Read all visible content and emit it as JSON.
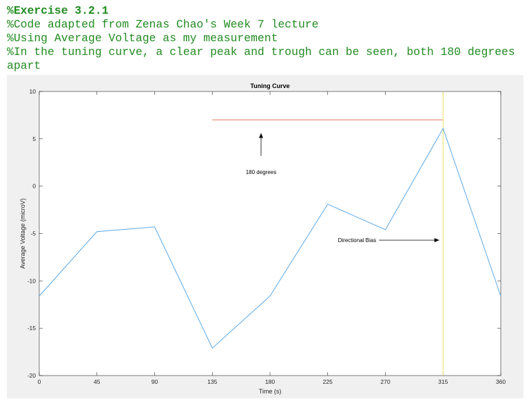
{
  "code_comments": {
    "heading": "%Exercise 3.2.1",
    "lines": [
      "%Code adapted from Zenas Chao's Week 7 lecture",
      "%Using Average Voltage as my measurement",
      "%In the tuning curve, a clear peak and trough can be seen, both 180 degrees apart"
    ]
  },
  "chart_data": {
    "type": "line",
    "title": "Tuning Curve",
    "xlabel": "Time (s)",
    "ylabel": "Average Voltage (microV)",
    "xlim": [
      0,
      360
    ],
    "ylim": [
      -20,
      10
    ],
    "xticks": [
      0,
      45,
      90,
      135,
      180,
      225,
      270,
      315,
      360
    ],
    "yticks": [
      -20,
      -15,
      -10,
      -5,
      0,
      5,
      10
    ],
    "grid": false,
    "series": [
      {
        "color": "#5aa8e6",
        "x": [
          0,
          45,
          90,
          135,
          180,
          225,
          270,
          315,
          360
        ],
        "values": [
          -11.6,
          -4.8,
          -4.3,
          -17.1,
          -11.6,
          -1.9,
          -4.6,
          6.1,
          -11.6
        ]
      }
    ],
    "reference_lines": [
      {
        "kind": "horizontal",
        "y": 7,
        "x_from": 135,
        "x_to": 315,
        "color": "#e8735a"
      },
      {
        "kind": "vertical",
        "x": 315,
        "color": "#e8e060"
      }
    ],
    "annotations": [
      {
        "text": "180 degrees",
        "x": 173,
        "y": 1.3,
        "arrow_from": [
          173,
          3.2
        ],
        "arrow_to": [
          173,
          5.6
        ],
        "arrow_direction": "up"
      },
      {
        "text": "Directional Bias",
        "x": 233,
        "y": -5.7,
        "arrow_from": [
          265,
          -5.7
        ],
        "arrow_to": [
          312,
          -5.7
        ],
        "arrow_direction": "right"
      }
    ]
  }
}
